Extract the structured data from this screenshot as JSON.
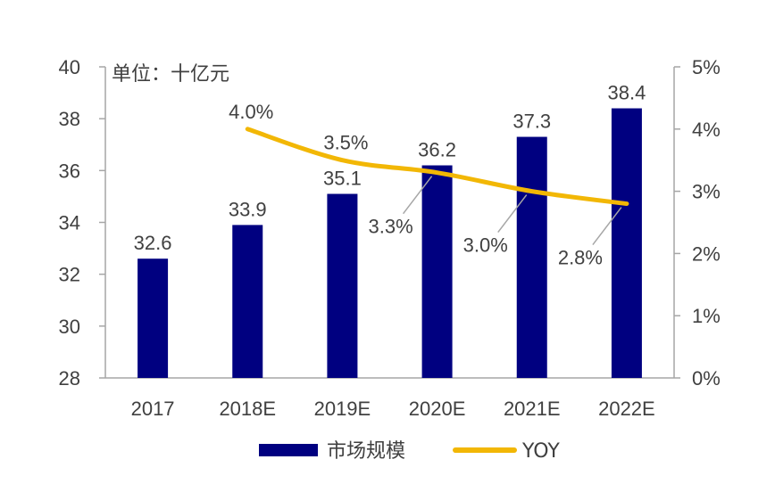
{
  "chart_data": {
    "type": "bar",
    "unit_label": "单位：十亿元",
    "categories": [
      "2017",
      "2018E",
      "2019E",
      "2020E",
      "2021E",
      "2022E"
    ],
    "series": [
      {
        "name": "市场规模",
        "type": "bar",
        "axis": "left",
        "values": [
          32.6,
          33.9,
          35.1,
          36.2,
          37.3,
          38.4
        ],
        "labels": [
          "32.6",
          "33.9",
          "35.1",
          "36.2",
          "37.3",
          "38.4"
        ]
      },
      {
        "name": "YOY",
        "type": "line",
        "axis": "right",
        "values": [
          null,
          4.0,
          3.5,
          3.3,
          3.0,
          2.8
        ],
        "labels": [
          "",
          "4.0%",
          "3.5%",
          "3.3%",
          "3.0%",
          "2.8%"
        ]
      }
    ],
    "left_axis": {
      "ylim": [
        28,
        40
      ],
      "ticks": [
        "28",
        "30",
        "32",
        "34",
        "36",
        "38",
        "40"
      ]
    },
    "right_axis": {
      "ylim": [
        0,
        5
      ],
      "ticks": [
        "0%",
        "1%",
        "2%",
        "3%",
        "4%",
        "5%"
      ]
    },
    "legend": {
      "position": "bottom",
      "entries": [
        "市场规模",
        "YOY"
      ]
    },
    "grid": false,
    "colors": {
      "bar": "#000080",
      "line": "#F2B705",
      "axis": "#A6A6A6",
      "text": "#404040",
      "leader": "#A6A6A6"
    }
  }
}
